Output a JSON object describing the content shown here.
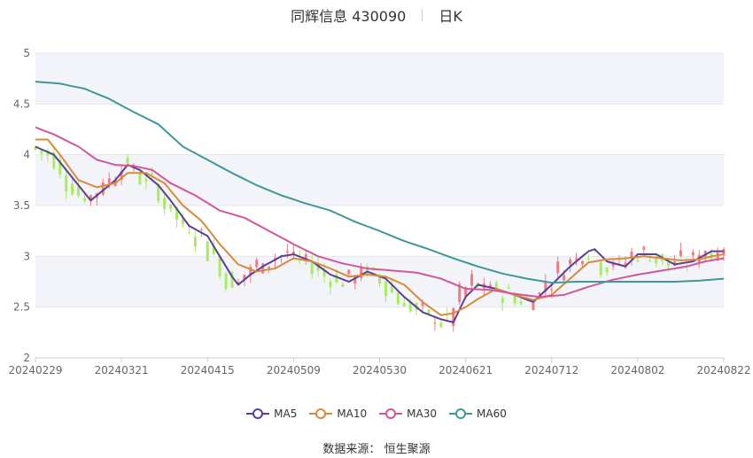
{
  "header": {
    "stock": "同辉信息 430090",
    "period": "日K"
  },
  "footer": {
    "source_label": "数据来源：",
    "source_name": "恒生聚源"
  },
  "colors": {
    "up": "#f07c82",
    "down": "#a6ec5c",
    "ma5": "#5b3f96",
    "ma10": "#d98a3a",
    "ma30": "#d1569b",
    "ma60": "#3f9898",
    "band": "#f3f4fa",
    "grid": "#e3e6ee"
  },
  "chart_data": {
    "type": "candlestick",
    "y_ticks": [
      "2",
      "2.5",
      "3",
      "3.5",
      "4",
      "4.5",
      "5"
    ],
    "ylim": [
      2,
      5
    ],
    "x_ticks": [
      {
        "label": "20240229",
        "index": 0
      },
      {
        "label": "20240321",
        "index": 14
      },
      {
        "label": "20240415",
        "index": 28
      },
      {
        "label": "20240509",
        "index": 42
      },
      {
        "label": "20240530",
        "index": 56
      },
      {
        "label": "20240621",
        "index": 70
      },
      {
        "label": "20240712",
        "index": 84
      },
      {
        "label": "20240802",
        "index": 98
      },
      {
        "label": "20240822",
        "index": 112
      }
    ],
    "num_points": 113,
    "series_anchor_points": {
      "ma5": [
        [
          0,
          4.08
        ],
        [
          3,
          4.0
        ],
        [
          5,
          3.85
        ],
        [
          9,
          3.55
        ],
        [
          13,
          3.75
        ],
        [
          15,
          3.9
        ],
        [
          17,
          3.85
        ],
        [
          20,
          3.7
        ],
        [
          22,
          3.55
        ],
        [
          25,
          3.3
        ],
        [
          28,
          3.2
        ],
        [
          30,
          3.0
        ],
        [
          32,
          2.8
        ],
        [
          33,
          2.72
        ],
        [
          35,
          2.82
        ],
        [
          37,
          2.9
        ],
        [
          40,
          3.0
        ],
        [
          42,
          3.02
        ],
        [
          45,
          2.95
        ],
        [
          48,
          2.82
        ],
        [
          51,
          2.75
        ],
        [
          54,
          2.85
        ],
        [
          57,
          2.78
        ],
        [
          60,
          2.6
        ],
        [
          63,
          2.45
        ],
        [
          66,
          2.38
        ],
        [
          68,
          2.35
        ],
        [
          70,
          2.6
        ],
        [
          72,
          2.72
        ],
        [
          75,
          2.68
        ],
        [
          78,
          2.62
        ],
        [
          81,
          2.55
        ],
        [
          84,
          2.72
        ],
        [
          87,
          2.9
        ],
        [
          90,
          3.05
        ],
        [
          91,
          3.07
        ],
        [
          93,
          2.95
        ],
        [
          96,
          2.9
        ],
        [
          98,
          3.02
        ],
        [
          101,
          3.02
        ],
        [
          104,
          2.92
        ],
        [
          107,
          2.95
        ],
        [
          110,
          3.05
        ],
        [
          112,
          3.05
        ]
      ],
      "ma10": [
        [
          0,
          4.15
        ],
        [
          2,
          4.15
        ],
        [
          4,
          4.0
        ],
        [
          7,
          3.75
        ],
        [
          10,
          3.68
        ],
        [
          13,
          3.72
        ],
        [
          15,
          3.82
        ],
        [
          18,
          3.82
        ],
        [
          21,
          3.72
        ],
        [
          24,
          3.5
        ],
        [
          27,
          3.35
        ],
        [
          30,
          3.12
        ],
        [
          33,
          2.92
        ],
        [
          36,
          2.85
        ],
        [
          39,
          2.88
        ],
        [
          42,
          2.98
        ],
        [
          45,
          2.95
        ],
        [
          48,
          2.88
        ],
        [
          51,
          2.8
        ],
        [
          54,
          2.82
        ],
        [
          57,
          2.8
        ],
        [
          60,
          2.72
        ],
        [
          63,
          2.55
        ],
        [
          66,
          2.42
        ],
        [
          68,
          2.44
        ],
        [
          70,
          2.5
        ],
        [
          72,
          2.58
        ],
        [
          75,
          2.68
        ],
        [
          78,
          2.62
        ],
        [
          81,
          2.57
        ],
        [
          84,
          2.62
        ],
        [
          87,
          2.78
        ],
        [
          90,
          2.94
        ],
        [
          93,
          2.97
        ],
        [
          96,
          2.98
        ],
        [
          99,
          3.0
        ],
        [
          102,
          2.98
        ],
        [
          105,
          2.96
        ],
        [
          108,
          2.97
        ],
        [
          110,
          3.0
        ],
        [
          112,
          3.02
        ]
      ],
      "ma30": [
        [
          0,
          4.27
        ],
        [
          3,
          4.2
        ],
        [
          7,
          4.08
        ],
        [
          10,
          3.95
        ],
        [
          13,
          3.9
        ],
        [
          16,
          3.89
        ],
        [
          19,
          3.85
        ],
        [
          22,
          3.72
        ],
        [
          26,
          3.6
        ],
        [
          30,
          3.45
        ],
        [
          34,
          3.38
        ],
        [
          38,
          3.25
        ],
        [
          42,
          3.12
        ],
        [
          46,
          3.0
        ],
        [
          50,
          2.93
        ],
        [
          54,
          2.88
        ],
        [
          58,
          2.86
        ],
        [
          62,
          2.84
        ],
        [
          66,
          2.78
        ],
        [
          70,
          2.68
        ],
        [
          74,
          2.67
        ],
        [
          78,
          2.63
        ],
        [
          82,
          2.6
        ],
        [
          86,
          2.62
        ],
        [
          90,
          2.7
        ],
        [
          94,
          2.77
        ],
        [
          98,
          2.82
        ],
        [
          102,
          2.86
        ],
        [
          106,
          2.9
        ],
        [
          109,
          2.95
        ],
        [
          112,
          2.98
        ]
      ],
      "ma60": [
        [
          0,
          4.72
        ],
        [
          4,
          4.7
        ],
        [
          8,
          4.65
        ],
        [
          12,
          4.55
        ],
        [
          16,
          4.42
        ],
        [
          20,
          4.3
        ],
        [
          24,
          4.08
        ],
        [
          28,
          3.95
        ],
        [
          32,
          3.82
        ],
        [
          36,
          3.7
        ],
        [
          40,
          3.6
        ],
        [
          44,
          3.52
        ],
        [
          48,
          3.45
        ],
        [
          52,
          3.34
        ],
        [
          56,
          3.25
        ],
        [
          60,
          3.15
        ],
        [
          64,
          3.07
        ],
        [
          68,
          2.98
        ],
        [
          72,
          2.9
        ],
        [
          76,
          2.83
        ],
        [
          80,
          2.78
        ],
        [
          84,
          2.74
        ],
        [
          88,
          2.75
        ],
        [
          92,
          2.75
        ],
        [
          96,
          2.75
        ],
        [
          100,
          2.75
        ],
        [
          104,
          2.75
        ],
        [
          108,
          2.76
        ],
        [
          112,
          2.78
        ]
      ]
    },
    "series": [
      {
        "name": "MA5",
        "key": "ma5"
      },
      {
        "name": "MA10",
        "key": "ma10"
      },
      {
        "name": "MA30",
        "key": "ma30"
      },
      {
        "name": "MA60",
        "key": "ma60"
      }
    ],
    "legend_position": "bottom",
    "grid": true
  }
}
